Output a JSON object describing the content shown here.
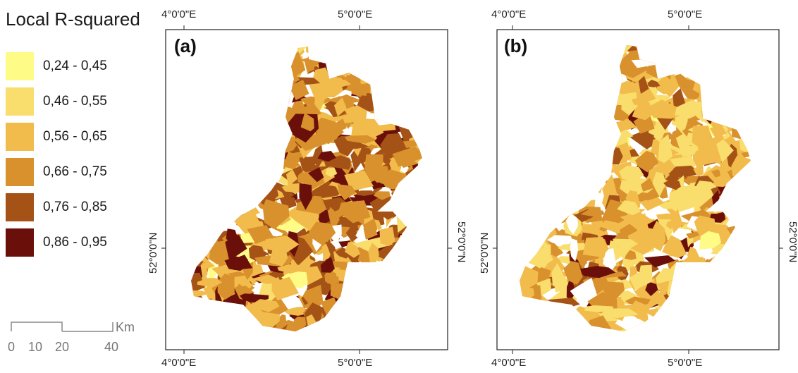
{
  "legend": {
    "title": "Local R-squared",
    "classes": [
      {
        "label": "0,24 - 0,45",
        "color": "#FEFB86"
      },
      {
        "label": "0,46 - 0,55",
        "color": "#F9DE6E"
      },
      {
        "label": "0,56 - 0,65",
        "color": "#F2BC4C"
      },
      {
        "label": "0,66 - 0,75",
        "color": "#D9912D"
      },
      {
        "label": "0,76 - 0,85",
        "color": "#A55216"
      },
      {
        "label": "0,86 - 0,95",
        "color": "#6A0F0A"
      }
    ]
  },
  "scalebar": {
    "ticks": [
      "0",
      "10",
      "20",
      "40"
    ],
    "unit": "Km"
  },
  "panels": [
    {
      "label": "(a)",
      "lon_labels": [
        "4°0'0\"E",
        "5°0'0\"E"
      ],
      "lat_label": "52°0'0\"N",
      "dominant_classes": [
        3,
        4,
        2
      ]
    },
    {
      "label": "(b)",
      "lon_labels": [
        "4°0'0\"E",
        "5°0'0\"E"
      ],
      "lat_label": "52°0'0\"N",
      "dominant_classes": [
        2,
        3,
        1
      ]
    }
  ]
}
